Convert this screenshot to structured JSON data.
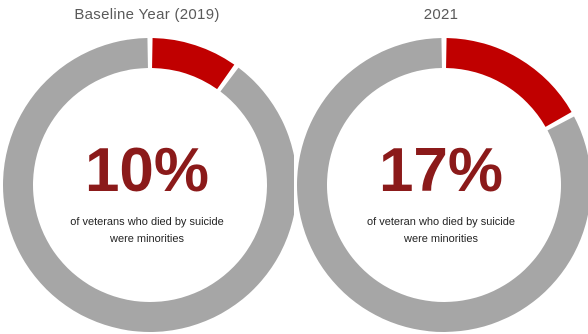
{
  "colors": {
    "highlight": "#c00000",
    "rest": "#a6a6a6",
    "percent_text": "#8b1a1a"
  },
  "chart_data": [
    {
      "type": "pie",
      "title": "Baseline Year (2019)",
      "slices": [
        {
          "label": "minorities",
          "value": 10
        },
        {
          "label": "other",
          "value": 90
        }
      ],
      "center_value": "10%",
      "caption_line1": "of veterans who died by suicide",
      "caption_line2": "were minorities"
    },
    {
      "type": "pie",
      "title": "2021",
      "slices": [
        {
          "label": "minorities",
          "value": 17
        },
        {
          "label": "other",
          "value": 83
        }
      ],
      "center_value": "17%",
      "caption_line1": "of veteran who died by suicide",
      "caption_line2": "were minorities"
    }
  ]
}
